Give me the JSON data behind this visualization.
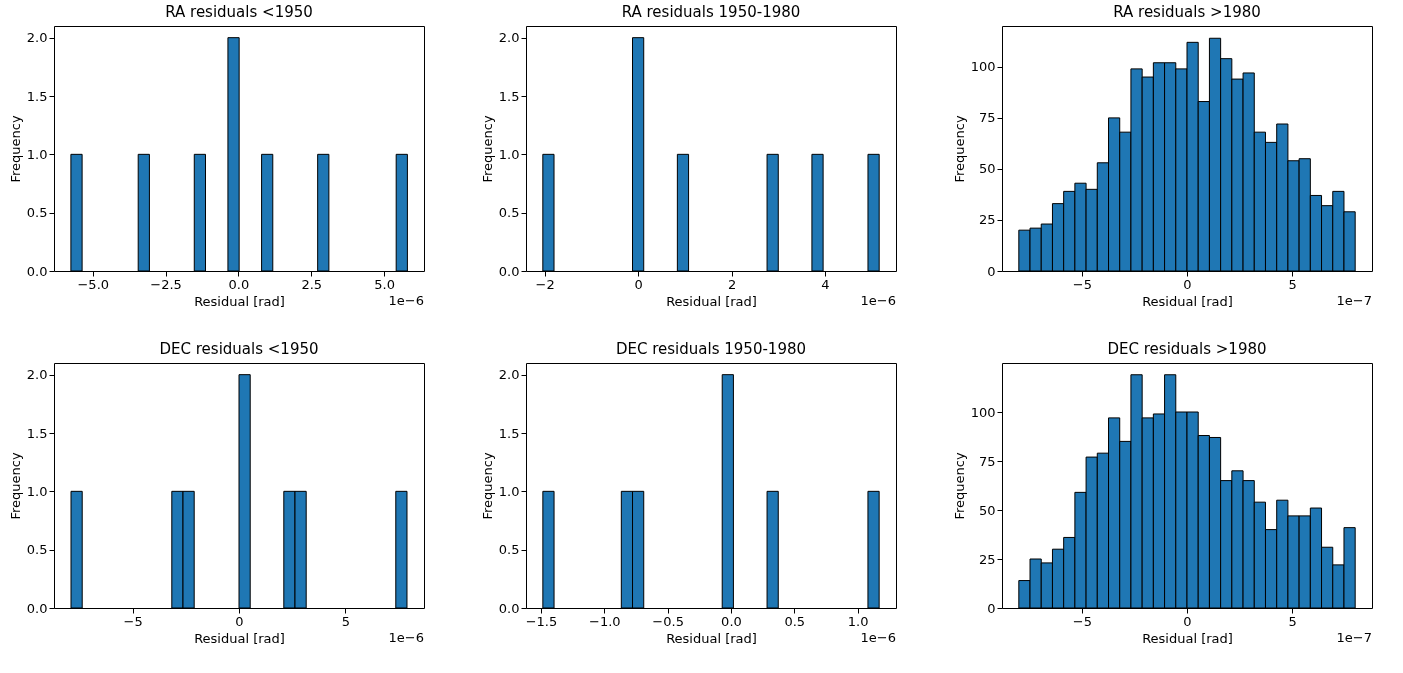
{
  "chart_data": [
    {
      "type": "histogram",
      "title": "RA residuals <1950",
      "xlabel": "Residual [rad]",
      "ylabel": "Frequency",
      "color": "#1f77b4",
      "grid": false,
      "bins": [
        -5.75,
        -5.365,
        -4.98,
        -4.595,
        -4.21,
        -3.825,
        -3.44,
        -3.055,
        -2.67,
        -2.285,
        -1.9,
        -1.515,
        -1.13,
        -0.745,
        -0.36,
        0.025,
        0.41,
        0.795,
        1.18,
        1.565,
        1.95,
        2.335,
        2.72,
        3.105,
        3.49,
        3.875,
        4.26,
        4.645,
        5.03,
        5.415,
        5.8
      ],
      "values": [
        1,
        0,
        0,
        0,
        0,
        0,
        1,
        0,
        0,
        0,
        0,
        1,
        0,
        0,
        2,
        0,
        0,
        1,
        0,
        0,
        0,
        0,
        1,
        0,
        0,
        0,
        0,
        0,
        0,
        1
      ],
      "xlim": [
        -6.33,
        6.37
      ],
      "xticks": [
        {
          "value": -5,
          "label": "−5.0"
        },
        {
          "value": -2.5,
          "label": "−2.5"
        },
        {
          "value": 0,
          "label": "0.0"
        },
        {
          "value": 2.5,
          "label": "2.5"
        },
        {
          "value": 5,
          "label": "5.0"
        }
      ],
      "ylim": [
        0,
        2.1
      ],
      "yticks": [
        {
          "value": 0,
          "label": "0.0"
        },
        {
          "value": 0.5,
          "label": "0.5"
        },
        {
          "value": 1,
          "label": "1.0"
        },
        {
          "value": 1.5,
          "label": "1.5"
        },
        {
          "value": 2,
          "label": "2.0"
        }
      ],
      "annotations": [
        "1e−6"
      ]
    },
    {
      "type": "histogram",
      "title": "RA residuals 1950-1980",
      "xlabel": "Residual [rad]",
      "ylabel": "Frequency",
      "color": "#1f77b4",
      "grid": false,
      "bins": [
        -2.04,
        -1.8,
        -1.56,
        -1.32,
        -1.08,
        -0.84,
        -0.6,
        -0.36,
        -0.12,
        0.12,
        0.36,
        0.6,
        0.84,
        1.08,
        1.32,
        1.56,
        1.8,
        2.04,
        2.28,
        2.52,
        2.76,
        3.0,
        3.24,
        3.48,
        3.72,
        3.96,
        4.2,
        4.44,
        4.68,
        4.92,
        5.16
      ],
      "values": [
        1,
        0,
        0,
        0,
        0,
        0,
        0,
        0,
        2,
        0,
        0,
        0,
        1,
        0,
        0,
        0,
        0,
        0,
        0,
        0,
        1,
        0,
        0,
        0,
        1,
        0,
        0,
        0,
        0,
        1
      ],
      "xlim": [
        -2.4,
        5.52
      ],
      "xticks": [
        {
          "value": -2,
          "label": "−2"
        },
        0,
        2,
        4
      ],
      "ylim": [
        0,
        2.1
      ],
      "yticks": [
        {
          "value": 0,
          "label": "0.0"
        },
        {
          "value": 0.5,
          "label": "0.5"
        },
        {
          "value": 1,
          "label": "1.0"
        },
        {
          "value": 1.5,
          "label": "1.5"
        },
        {
          "value": 2,
          "label": "2.0"
        }
      ],
      "annotations": [
        "1e−6"
      ]
    },
    {
      "type": "histogram",
      "title": "RA residuals >1980",
      "xlabel": "Residual [rad]",
      "ylabel": "Frequency",
      "color": "#1f77b4",
      "grid": false,
      "bins": [
        -8,
        -7.467,
        -6.933,
        -6.4,
        -5.867,
        -5.333,
        -4.8,
        -4.267,
        -3.733,
        -3.2,
        -2.667,
        -2.133,
        -1.6,
        -1.067,
        -0.533,
        0,
        0.533,
        1.067,
        1.6,
        2.133,
        2.667,
        3.2,
        3.733,
        4.267,
        4.8,
        5.333,
        5.867,
        6.4,
        6.933,
        7.467,
        8
      ],
      "values": [
        20,
        21,
        23,
        33,
        39,
        43,
        40,
        53,
        75,
        68,
        99,
        95,
        102,
        102,
        99,
        112,
        83,
        114,
        104,
        94,
        97,
        68,
        63,
        72,
        54,
        55,
        37,
        32,
        39,
        29
      ],
      "xlim": [
        -8.8,
        8.8
      ],
      "xticks": [
        {
          "value": -5,
          "label": "−5"
        },
        0,
        5
      ],
      "ylim": [
        0,
        120
      ],
      "yticks": [
        0,
        25,
        50,
        75,
        100
      ],
      "annotations": [
        "1e−7"
      ]
    },
    {
      "type": "histogram",
      "title": "DEC residuals <1950",
      "xlabel": "Residual [rad]",
      "ylabel": "Frequency",
      "color": "#1f77b4",
      "grid": false,
      "bins": [
        -7.9,
        -7.373,
        -6.847,
        -6.32,
        -5.793,
        -5.267,
        -4.74,
        -4.213,
        -3.687,
        -3.16,
        -2.633,
        -2.107,
        -1.58,
        -1.053,
        -0.527,
        0,
        0.527,
        1.053,
        1.58,
        2.107,
        2.633,
        3.16,
        3.687,
        4.213,
        4.74,
        5.267,
        5.793,
        6.32,
        6.847,
        7.373,
        7.9
      ],
      "values": [
        1,
        0,
        0,
        0,
        0,
        0,
        0,
        0,
        0,
        1,
        1,
        0,
        0,
        0,
        0,
        2,
        0,
        0,
        0,
        1,
        1,
        0,
        0,
        0,
        0,
        0,
        0,
        0,
        0,
        1
      ],
      "xlim": [
        -8.7,
        8.7
      ],
      "xticks": [
        {
          "value": -5,
          "label": "−5"
        },
        0,
        5
      ],
      "ylim": [
        0,
        2.1
      ],
      "yticks": [
        {
          "value": 0,
          "label": "0.0"
        },
        {
          "value": 0.5,
          "label": "0.5"
        },
        {
          "value": 1,
          "label": "1.0"
        },
        {
          "value": 1.5,
          "label": "1.5"
        },
        {
          "value": 2,
          "label": "2.0"
        }
      ],
      "annotations": [
        "1e−6"
      ]
    },
    {
      "type": "histogram",
      "title": "DEC residuals 1950-1980",
      "xlabel": "Residual [rad]",
      "ylabel": "Frequency",
      "color": "#1f77b4",
      "grid": false,
      "bins": [
        -1.485,
        -1.3965,
        -1.308,
        -1.2195,
        -1.131,
        -1.0425,
        -0.954,
        -0.8655,
        -0.777,
        -0.6885,
        -0.6,
        -0.5115,
        -0.423,
        -0.3345,
        -0.246,
        -0.1575,
        -0.069,
        0.0195,
        0.108,
        0.1965,
        0.285,
        0.3735,
        0.462,
        0.5505,
        0.639,
        0.7275,
        0.816,
        0.9045,
        0.993,
        1.0815,
        1.17
      ],
      "values": [
        1,
        0,
        0,
        0,
        0,
        0,
        0,
        1,
        1,
        0,
        0,
        0,
        0,
        0,
        0,
        0,
        2,
        0,
        0,
        0,
        1,
        0,
        0,
        0,
        0,
        0,
        0,
        0,
        0,
        1
      ],
      "xlim": [
        -1.618,
        1.303
      ],
      "xticks": [
        {
          "value": -1.5,
          "label": "−1.5"
        },
        {
          "value": -1,
          "label": "−1.0"
        },
        {
          "value": -0.5,
          "label": "−0.5"
        },
        {
          "value": 0,
          "label": "0.0"
        },
        0.5,
        {
          "value": 1,
          "label": "1.0"
        }
      ],
      "ylim": [
        0,
        2.1
      ],
      "yticks": [
        {
          "value": 0,
          "label": "0.0"
        },
        {
          "value": 0.5,
          "label": "0.5"
        },
        {
          "value": 1,
          "label": "1.0"
        },
        {
          "value": 1.5,
          "label": "1.5"
        },
        {
          "value": 2,
          "label": "2.0"
        }
      ],
      "annotations": [
        "1e−6"
      ]
    },
    {
      "type": "histogram",
      "title": "DEC residuals >1980",
      "xlabel": "Residual [rad]",
      "ylabel": "Frequency",
      "color": "#1f77b4",
      "grid": false,
      "bins": [
        -8,
        -7.467,
        -6.933,
        -6.4,
        -5.867,
        -5.333,
        -4.8,
        -4.267,
        -3.733,
        -3.2,
        -2.667,
        -2.133,
        -1.6,
        -1.067,
        -0.533,
        0,
        0.533,
        1.067,
        1.6,
        2.133,
        2.667,
        3.2,
        3.733,
        4.267,
        4.8,
        5.333,
        5.867,
        6.4,
        6.933,
        7.467,
        8
      ],
      "values": [
        14,
        25,
        23,
        30,
        36,
        59,
        77,
        79,
        97,
        85,
        119,
        97,
        99,
        119,
        100,
        100,
        88,
        87,
        65,
        70,
        65,
        54,
        40,
        55,
        47,
        47,
        51,
        31,
        22,
        41
      ],
      "xlim": [
        -8.8,
        8.8
      ],
      "xticks": [
        {
          "value": -5,
          "label": "−5"
        },
        0,
        5
      ],
      "ylim": [
        0,
        125
      ],
      "yticks": [
        0,
        25,
        50,
        75,
        100
      ],
      "annotations": [
        "1e−7"
      ]
    }
  ]
}
